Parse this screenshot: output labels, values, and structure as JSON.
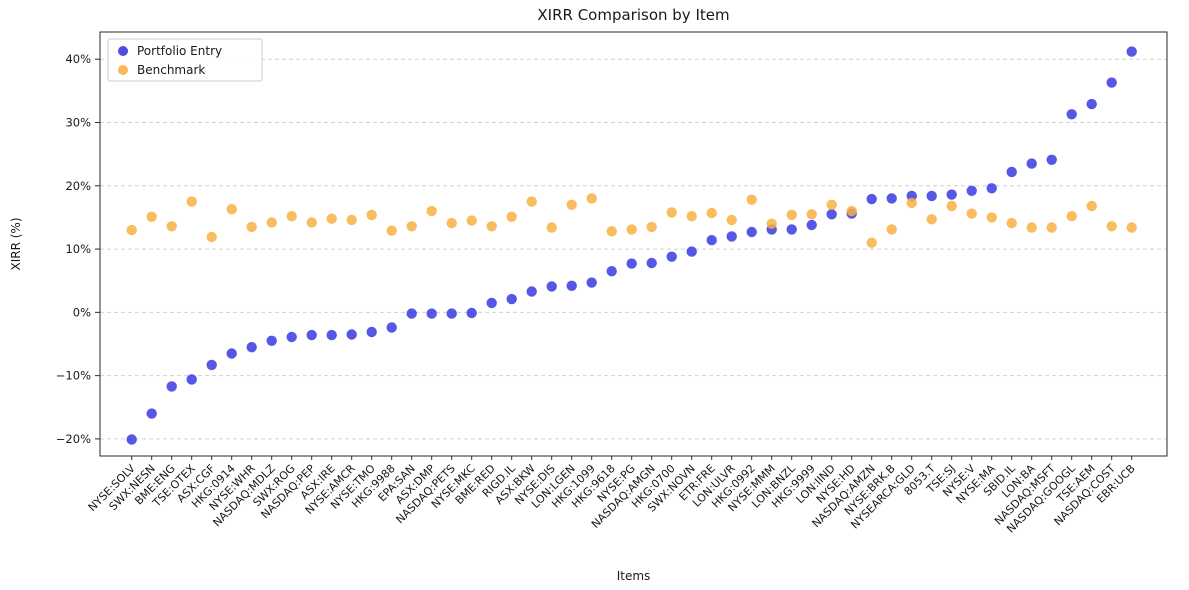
{
  "chart_data": {
    "type": "scatter",
    "title": "XIRR Comparison by Item",
    "xlabel": "Items",
    "ylabel": "XIRR (%)",
    "grid": "horizontal-dashed",
    "legend_position": "upper-left",
    "background": "#ffffff",
    "grid_color": "#d0d0d0",
    "spine_color": "#2a2a2a",
    "yticks": [
      -20,
      -10,
      0,
      10,
      20,
      30,
      40
    ],
    "ytick_labels": [
      "−20%",
      "−10%",
      "0%",
      "10%",
      "20%",
      "30%",
      "40%"
    ],
    "ylim": [
      -22.7,
      44.3
    ],
    "categories": [
      "NYSE:SOLV",
      "SWX:NESN",
      "BME:ENG",
      "TSE:OTEX",
      "ASX:CGF",
      "HKG:0914",
      "NYSE:WHR",
      "NASDAQ:MDLZ",
      "SWX:ROG",
      "NASDAQ:PEP",
      "ASX:IRE",
      "NYSE:AMCR",
      "NYSE:TMO",
      "HKG:9988",
      "EPA:SAN",
      "ASX:DMP",
      "NASDAQ:PETS",
      "NYSE:MKC",
      "BME:RED",
      "RIGD.IL",
      "ASX:BKW",
      "NYSE:DIS",
      "LON:LGEN",
      "HKG:1099",
      "HKG:9618",
      "NYSE:PG",
      "NASDAQ:AMGN",
      "HKG:0700",
      "SWX:NOVN",
      "ETR:FRE",
      "LON:ULVR",
      "HKG:0992",
      "NYSE:MMM",
      "LON:BNZL",
      "HKG:9999",
      "LON:IIND",
      "NYSE:HD",
      "NASDAQ:AMZN",
      "NYSE:BRK.B",
      "NYSEARCA:GLD",
      "8053.T",
      "TSE:SJ",
      "NYSE:V",
      "NYSE:MA",
      "SBID.IL",
      "LON:BA",
      "NASDAQ:MSFT",
      "NASDAQ:GOOGL",
      "TSE:AEM",
      "NASDAQ:COST",
      "EBR:UCB"
    ],
    "series": [
      {
        "name": "Portfolio Entry",
        "color": "#3a3ae0",
        "values": [
          -20.1,
          -16.0,
          -11.7,
          -10.6,
          -8.3,
          -6.5,
          -5.5,
          -4.5,
          -3.9,
          -3.6,
          -3.6,
          -3.5,
          -3.1,
          -2.4,
          -0.2,
          -0.2,
          -0.2,
          -0.1,
          1.5,
          2.1,
          3.3,
          4.1,
          4.2,
          4.7,
          6.5,
          7.7,
          7.8,
          8.8,
          9.6,
          11.4,
          12.0,
          12.7,
          13.1,
          13.1,
          13.8,
          15.5,
          15.6,
          17.9,
          18.0,
          18.4,
          18.4,
          18.6,
          19.2,
          19.6,
          22.2,
          23.5,
          24.1,
          31.3,
          32.9,
          36.3,
          41.2
        ]
      },
      {
        "name": "Benchmark",
        "color": "#f8b042",
        "values": [
          13.0,
          15.1,
          13.6,
          17.5,
          11.9,
          16.3,
          13.5,
          14.2,
          15.2,
          14.2,
          14.8,
          14.6,
          15.4,
          12.9,
          13.6,
          16.0,
          14.1,
          14.5,
          13.6,
          15.1,
          17.5,
          13.4,
          17.0,
          18.0,
          12.8,
          13.1,
          13.5,
          15.8,
          15.2,
          15.7,
          14.6,
          17.8,
          14.0,
          15.4,
          15.5,
          17.0,
          16.0,
          11.0,
          13.1,
          17.3,
          14.7,
          16.8,
          15.6,
          15.0,
          14.1,
          13.4,
          13.4,
          15.2,
          16.8,
          13.6,
          13.4
        ]
      }
    ]
  }
}
